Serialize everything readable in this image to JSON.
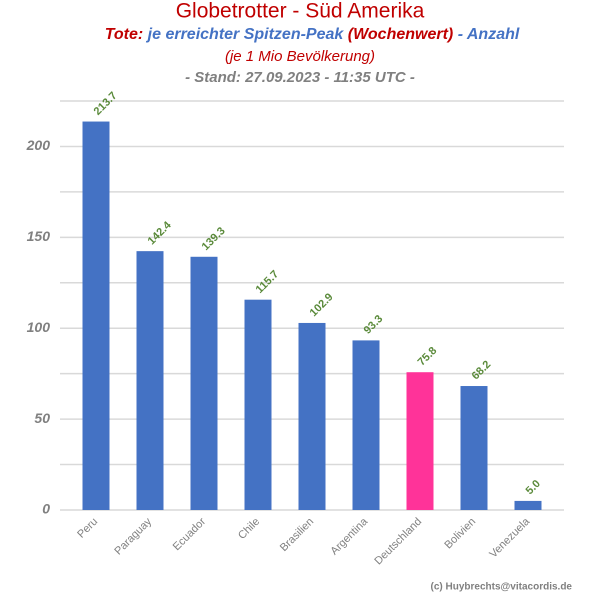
{
  "chart_data": {
    "type": "bar",
    "title": "Globetrotter - Süd Amerika",
    "subtitle_parts": [
      {
        "text": "Tote:",
        "color": "#c00000"
      },
      {
        "text": "je erreichter Spitzen-Peak",
        "color": "#4472c4"
      },
      {
        "text": "(Wochenwert)",
        "color": "#c00000"
      },
      {
        "text": "- Anzahl",
        "color": "#4472c4"
      }
    ],
    "subtitle2": "(je 1 Mio Bevölkerung)",
    "subtitle3": "- Stand: 27.09.2023 - 11:35 UTC -",
    "credit": "(c) Huybrechts@vitacordis.de",
    "categories": [
      "Peru",
      "Paraguay",
      "Ecuador",
      "Chile",
      "Brasilien",
      "Argentina",
      "Deutschland",
      "Bolivien",
      "Venezuela"
    ],
    "values": [
      213.7,
      142.4,
      139.3,
      115.7,
      102.9,
      93.3,
      75.8,
      68.2,
      5
    ],
    "value_labels": [
      "213.7",
      "142.4",
      "139.3",
      "115.7",
      "102.9",
      "93.3",
      "75.8",
      "68.2",
      "5.0"
    ],
    "colors": [
      "#4472c4",
      "#4472c4",
      "#4472c4",
      "#4472c4",
      "#4472c4",
      "#4472c4",
      "#ff3399",
      "#4472c4",
      "#4472c4"
    ],
    "ylim": [
      0,
      225
    ],
    "yticks": [
      0,
      50,
      100,
      150,
      200
    ],
    "minor_yticks": [
      25,
      75,
      125,
      175,
      225
    ],
    "grid": true
  }
}
